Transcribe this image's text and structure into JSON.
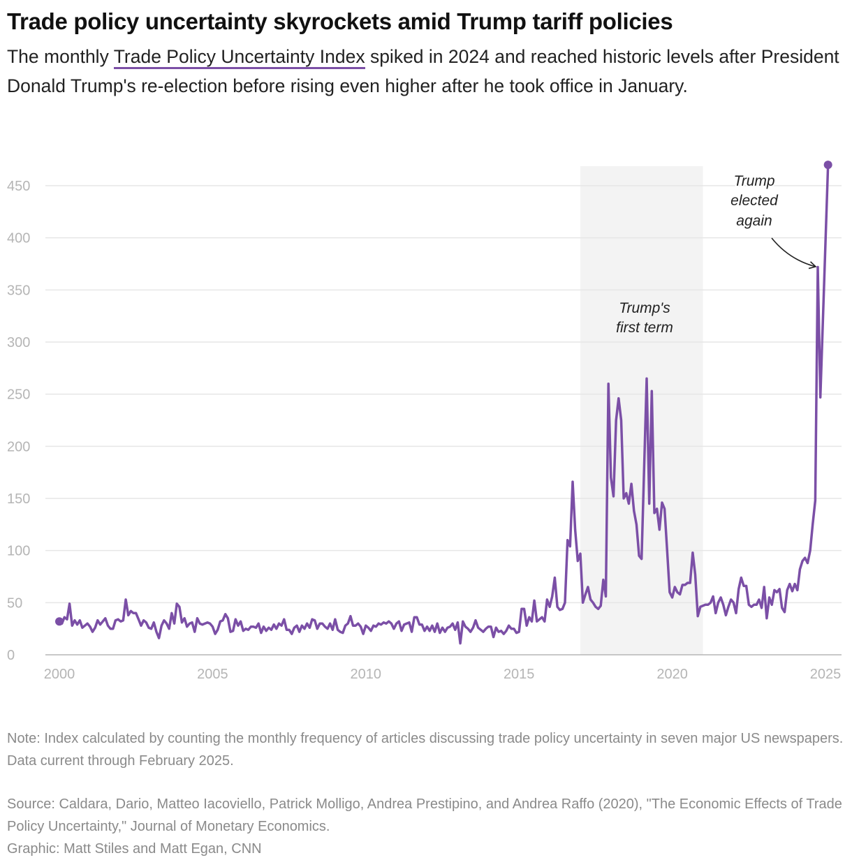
{
  "title": "Trade policy uncertainty skyrockets amid Trump tariff policies",
  "subtitle": {
    "before": "The monthly ",
    "link": "Trade Policy Uncertainty Index",
    "after": " spiked in 2024 and reached historic levels after President Donald Trump's re-election before rising even higher after he took office in January."
  },
  "note": "Note: Index calculated by counting the monthly frequency of articles discussing trade policy uncertainty in seven major US newspapers. Data current through February 2025.",
  "source": "Source: Caldara, Dario, Matteo Iacoviello, Patrick Molligo, Andrea Prestipino, and Andrea Raffo (2020), \"The Economic Effects of Trade Policy Uncertainty,\" Journal of Monetary Economics.",
  "credit": "Graphic: Matt Stiles and Matt Egan, CNN",
  "colors": {
    "line": "#7b4fa6",
    "shade": "#f3f3f3",
    "grid": "#e6e6e6",
    "axis_text": "#b5b5b5"
  },
  "chart_data": {
    "type": "line",
    "title": "",
    "xlabel": "",
    "ylabel": "",
    "x_start": "2000-01",
    "x_end": "2025-02",
    "frequency": "monthly",
    "xlim": [
      2000,
      2025
    ],
    "ylim": [
      0,
      470
    ],
    "x_ticks": [
      "2000",
      "2005",
      "2010",
      "2015",
      "2020",
      "2025"
    ],
    "y_ticks": [
      "0",
      "50",
      "100",
      "150",
      "200",
      "250",
      "300",
      "350",
      "400",
      "450"
    ],
    "grid": "horizontal",
    "shaded_period": {
      "start": "2017-01",
      "end": "2021-01",
      "label": [
        "Trump's",
        "first term"
      ]
    },
    "annotation": {
      "label": [
        "Trump",
        "elected",
        "again"
      ],
      "points_to": "2024-10"
    },
    "markers": [
      "first",
      "last"
    ],
    "values": [
      32,
      30,
      36,
      34,
      49,
      28,
      33,
      29,
      33,
      26,
      28,
      30,
      27,
      22,
      26,
      33,
      29,
      32,
      35,
      28,
      25,
      25,
      33,
      34,
      32,
      33,
      53,
      38,
      42,
      40,
      40,
      34,
      28,
      33,
      31,
      26,
      25,
      31,
      22,
      16,
      28,
      33,
      30,
      25,
      40,
      30,
      49,
      46,
      31,
      35,
      27,
      30,
      31,
      22,
      35,
      30,
      29,
      30,
      31,
      30,
      27,
      20,
      24,
      32,
      33,
      39,
      35,
      22,
      23,
      34,
      28,
      32,
      23,
      25,
      24,
      27,
      27,
      26,
      30,
      21,
      27,
      23,
      26,
      24,
      29,
      25,
      30,
      28,
      34,
      24,
      24,
      20,
      26,
      28,
      22,
      28,
      25,
      30,
      26,
      34,
      33,
      25,
      30,
      30,
      27,
      25,
      30,
      24,
      34,
      24,
      22,
      21,
      28,
      30,
      37,
      28,
      28,
      30,
      27,
      20,
      28,
      26,
      23,
      28,
      27,
      30,
      29,
      31,
      30,
      32,
      30,
      25,
      30,
      32,
      23,
      29,
      30,
      31,
      22,
      36,
      36,
      29,
      29,
      23,
      27,
      23,
      28,
      22,
      30,
      21,
      26,
      22,
      26,
      27,
      30,
      24,
      31,
      11,
      32,
      27,
      25,
      22,
      26,
      33,
      26,
      24,
      22,
      25,
      27,
      27,
      17,
      26,
      22,
      23,
      20,
      23,
      28,
      25,
      25,
      21,
      22,
      44,
      44,
      28,
      36,
      32,
      52,
      32,
      34,
      36,
      32,
      53,
      46,
      56,
      74,
      46,
      43,
      44,
      50,
      110,
      104,
      166,
      120,
      90,
      97,
      50,
      58,
      65,
      53,
      50,
      46,
      44,
      47,
      72,
      56,
      260,
      170,
      152,
      225,
      246,
      225,
      150,
      155,
      145,
      164,
      138,
      125,
      95,
      92,
      180,
      265,
      145,
      253,
      136,
      140,
      120,
      146,
      140,
      100,
      60,
      55,
      65,
      60,
      58,
      67,
      67,
      69,
      69,
      98,
      77,
      37,
      46,
      47,
      48,
      48,
      50,
      56,
      40,
      50,
      55,
      48,
      38,
      46,
      53,
      50,
      40,
      63,
      74,
      66,
      66,
      48,
      46,
      48,
      48,
      53,
      45,
      65,
      35,
      55,
      48,
      62,
      60,
      63,
      45,
      41,
      62,
      68,
      61,
      68,
      62,
      82,
      90,
      93,
      88,
      100,
      125,
      148,
      372,
      247,
      320,
      395,
      470
    ]
  }
}
